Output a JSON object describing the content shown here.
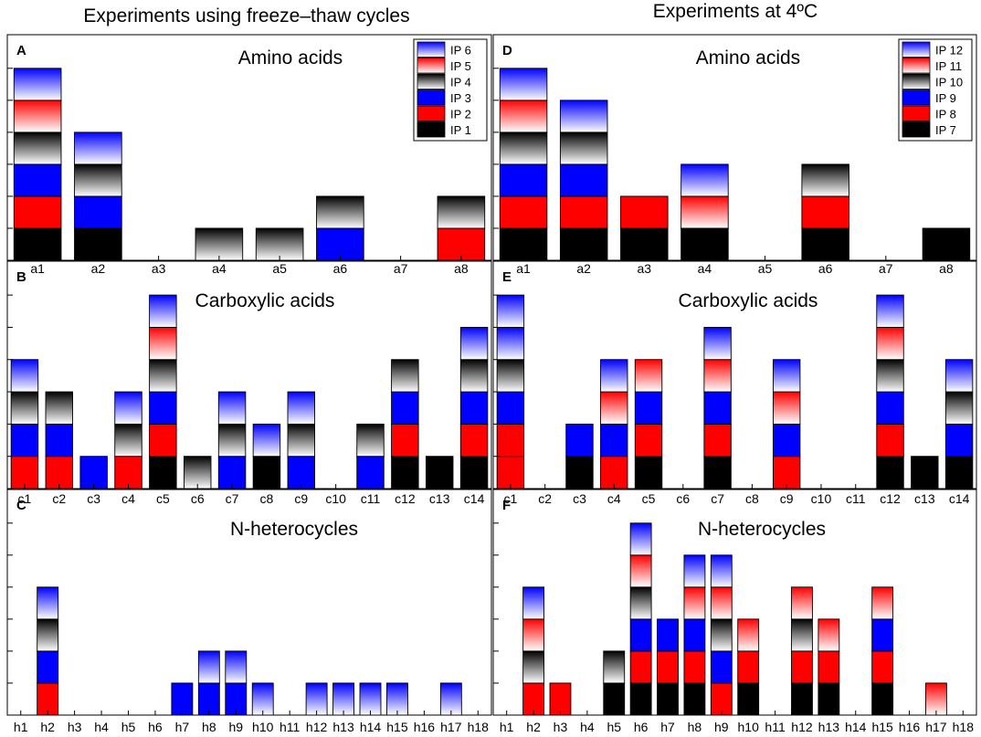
{
  "colors": {
    "ip_black": "#000000",
    "ip_red": "#ff0000",
    "ip_blue": "#0000ff",
    "grad_black": "#000000",
    "grad_red": "#ff0000",
    "grad_blue": "#0000ff"
  },
  "column_titles": {
    "left": "Experiments using freeze–thaw cycles",
    "right": "Experiments at 4ºC"
  },
  "chart_data": [
    {
      "id": "A",
      "type": "bar",
      "stacked": true,
      "panel_letter": "A",
      "title": "Amino acids",
      "categories": [
        "a1",
        "a2",
        "a3",
        "a4",
        "a5",
        "a6",
        "a7",
        "a8"
      ],
      "ylim": [
        0,
        6
      ],
      "legend": [
        "IP 6",
        "IP 5",
        "IP 4",
        "IP 3",
        "IP 2",
        "IP 1"
      ],
      "stacks": [
        [
          "ip1",
          "ip2",
          "ip3",
          "ip4",
          "ip5",
          "ip6"
        ],
        [
          "ip1",
          "ip3",
          "ip4",
          "ip6"
        ],
        [],
        [
          "ip4"
        ],
        [
          "ip4"
        ],
        [
          "ip3",
          "ip4"
        ],
        [],
        [
          "ip2",
          "ip4"
        ]
      ]
    },
    {
      "id": "D",
      "type": "bar",
      "stacked": true,
      "panel_letter": "D",
      "title": "Amino acids",
      "categories": [
        "a1",
        "a2",
        "a3",
        "a4",
        "a5",
        "a6",
        "a7",
        "a8"
      ],
      "ylim": [
        0,
        6
      ],
      "legend": [
        "IP 12",
        "IP 11",
        "IP 10",
        "IP 9",
        "IP 8",
        "IP 7"
      ],
      "stacks": [
        [
          "ip1",
          "ip2",
          "ip3",
          "ip4",
          "ip5",
          "ip6"
        ],
        [
          "ip1",
          "ip2",
          "ip3",
          "ip4",
          "ip6"
        ],
        [
          "ip1",
          "ip2"
        ],
        [
          "ip1",
          "ip5",
          "ip6"
        ],
        [],
        [
          "ip1",
          "ip2",
          "ip4"
        ],
        [],
        [
          "ip1"
        ]
      ]
    },
    {
      "id": "B",
      "type": "bar",
      "stacked": true,
      "panel_letter": "B",
      "title": "Carboxylic acids",
      "categories": [
        "c1",
        "c2",
        "c3",
        "c4",
        "c5",
        "c6",
        "c7",
        "c8",
        "c9",
        "c10",
        "c11",
        "c12",
        "c13",
        "c14"
      ],
      "ylim": [
        0,
        6
      ],
      "stacks": [
        [
          "ip2",
          "ip3",
          "ip4",
          "ip6"
        ],
        [
          "ip2",
          "ip3",
          "ip4"
        ],
        [
          "ip3"
        ],
        [
          "ip2",
          "ip4",
          "ip6"
        ],
        [
          "ip1",
          "ip2",
          "ip3",
          "ip4",
          "ip5",
          "ip6"
        ],
        [
          "ip4"
        ],
        [
          "ip3",
          "ip4",
          "ip6"
        ],
        [
          "ip1",
          "ip6"
        ],
        [
          "ip3",
          "ip4",
          "ip6"
        ],
        [],
        [
          "ip3",
          "ip4"
        ],
        [
          "ip1",
          "ip2",
          "ip3",
          "ip4"
        ],
        [
          "ip1"
        ],
        [
          "ip1",
          "ip2",
          "ip3",
          "ip4",
          "ip6"
        ]
      ]
    },
    {
      "id": "E",
      "type": "bar",
      "stacked": true,
      "panel_letter": "E",
      "title": "Carboxylic acids",
      "categories": [
        "c1",
        "c2",
        "c3",
        "c4",
        "c5",
        "c6",
        "c7",
        "c8",
        "c9",
        "c10",
        "c11",
        "c12",
        "c13",
        "c14"
      ],
      "ylim": [
        0,
        6
      ],
      "stacks": [
        [
          "ip2",
          "ip2",
          "ip3",
          "ip4",
          "ip6",
          "ip6"
        ],
        [],
        [
          "ip1",
          "ip3"
        ],
        [
          "ip2",
          "ip3",
          "ip5",
          "ip6"
        ],
        [
          "ip1",
          "ip2",
          "ip3",
          "ip5"
        ],
        [],
        [
          "ip1",
          "ip2",
          "ip3",
          "ip5",
          "ip6"
        ],
        [],
        [
          "ip2",
          "ip3",
          "ip5",
          "ip6"
        ],
        [],
        [],
        [
          "ip1",
          "ip2",
          "ip3",
          "ip4",
          "ip5",
          "ip6"
        ],
        [
          "ip1"
        ],
        [
          "ip1",
          "ip3",
          "ip4",
          "ip6"
        ]
      ]
    },
    {
      "id": "C",
      "type": "bar",
      "stacked": true,
      "panel_letter": "C",
      "title": "N-heterocycles",
      "categories": [
        "h1",
        "h2",
        "h3",
        "h4",
        "h5",
        "h6",
        "h7",
        "h8",
        "h9",
        "h10",
        "h11",
        "h12",
        "h13",
        "h14",
        "h15",
        "h16",
        "h17",
        "h18"
      ],
      "ylim": [
        0,
        6
      ],
      "stacks": [
        [],
        [
          "ip2",
          "ip3",
          "ip4",
          "ip6"
        ],
        [],
        [],
        [],
        [],
        [
          "ip3"
        ],
        [
          "ip3",
          "ip6"
        ],
        [
          "ip3",
          "ip6"
        ],
        [
          "ip6"
        ],
        [],
        [
          "ip6"
        ],
        [
          "ip6"
        ],
        [
          "ip6"
        ],
        [
          "ip6"
        ],
        [],
        [
          "ip6"
        ],
        []
      ]
    },
    {
      "id": "F",
      "type": "bar",
      "stacked": true,
      "panel_letter": "F",
      "title": "N-heterocycles",
      "categories": [
        "h1",
        "h2",
        "h3",
        "h4",
        "h5",
        "h6",
        "h7",
        "h8",
        "h9",
        "h10",
        "h11",
        "h12",
        "h13",
        "h14",
        "h15",
        "h16",
        "h17",
        "h18"
      ],
      "ylim": [
        0,
        6
      ],
      "stacks": [
        [],
        [
          "ip2",
          "ip4",
          "ip5",
          "ip6"
        ],
        [
          "ip2"
        ],
        [],
        [
          "ip1",
          "ip4"
        ],
        [
          "ip1",
          "ip2",
          "ip3",
          "ip4",
          "ip5",
          "ip6"
        ],
        [
          "ip1",
          "ip2",
          "ip3"
        ],
        [
          "ip1",
          "ip2",
          "ip3",
          "ip5",
          "ip6"
        ],
        [
          "ip2",
          "ip3",
          "ip4",
          "ip5",
          "ip6"
        ],
        [
          "ip1",
          "ip2",
          "ip5"
        ],
        [],
        [
          "ip1",
          "ip2",
          "ip4",
          "ip5"
        ],
        [
          "ip1",
          "ip2",
          "ip5"
        ],
        [],
        [
          "ip1",
          "ip2",
          "ip3",
          "ip5"
        ],
        [],
        [
          "ip5"
        ],
        []
      ]
    }
  ]
}
